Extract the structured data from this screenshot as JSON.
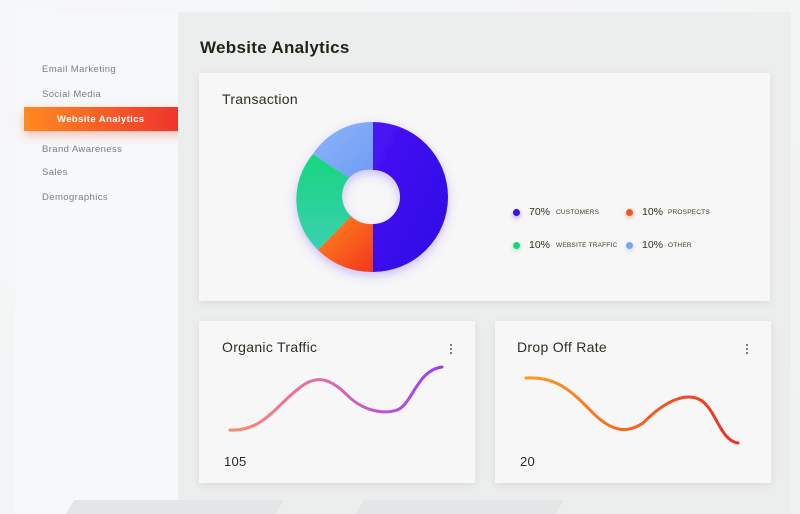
{
  "sidebar": {
    "items": [
      {
        "label": "Email Marketing"
      },
      {
        "label": "Social Media"
      },
      {
        "label": "Website Analytics"
      },
      {
        "label": "Brand Awareness"
      },
      {
        "label": "Sales"
      },
      {
        "label": "Demographics"
      }
    ],
    "active_index": 2
  },
  "main": {
    "title": "Website Analytics"
  },
  "transaction": {
    "title": "Transaction",
    "legend": [
      {
        "percent": "70%",
        "label": "CUSTOMERS",
        "color": "#3b0df2"
      },
      {
        "percent": "10%",
        "label": "PROSPECTS",
        "color": "#f4561f"
      },
      {
        "percent": "10%",
        "label": "WEBSITE TRAFFIC",
        "color": "#17d67a"
      },
      {
        "percent": "10%",
        "label": "OTHER",
        "color": "#7aa6f7"
      }
    ]
  },
  "organic_traffic": {
    "title": "Organic Traffic",
    "value": "105",
    "menu_icon": "kebab-menu-icon"
  },
  "drop_off_rate": {
    "title": "Drop Off Rate",
    "value": "20",
    "menu_icon": "kebab-menu-icon"
  },
  "colors": {
    "accent_start": "#ff8a1f",
    "accent_end": "#f0302e"
  }
}
